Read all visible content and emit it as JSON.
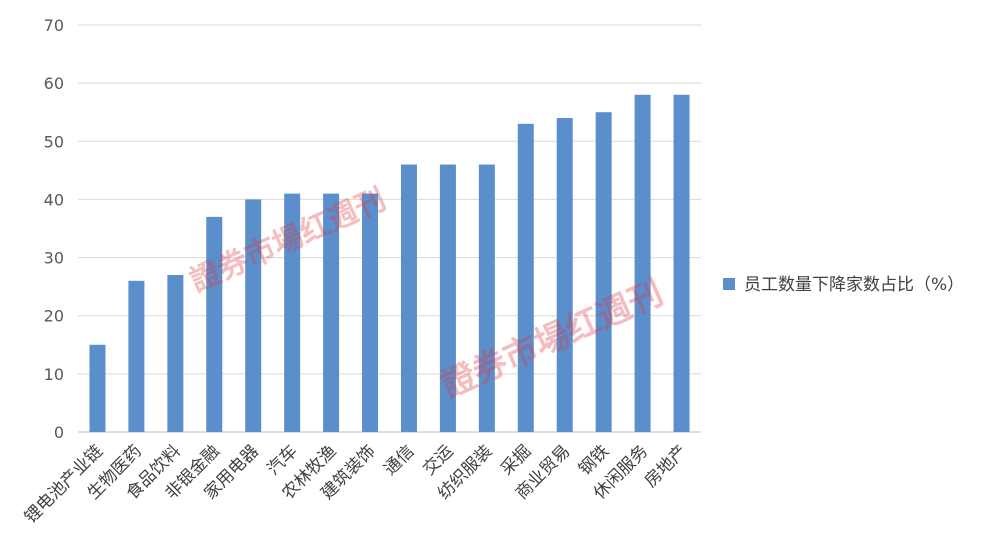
{
  "chart_data": {
    "type": "bar",
    "title": "",
    "xlabel": "",
    "ylabel": "",
    "ylim": [
      0,
      70
    ],
    "yticks": [
      0,
      10,
      20,
      30,
      40,
      50,
      60,
      70
    ],
    "grid": true,
    "legend_position": "right",
    "categories": [
      "锂电池产业链",
      "生物医药",
      "食品饮料",
      "非银金融",
      "家用电器",
      "汽车",
      "农林牧渔",
      "建筑装饰",
      "通信",
      "交运",
      "纺织服装",
      "采掘",
      "商业贸易",
      "钢铁",
      "休闲服务",
      "房地产"
    ],
    "series": [
      {
        "name": "员工数量下降家数占比（%）",
        "values": [
          15,
          26,
          27,
          37,
          40,
          41,
          41,
          41,
          46,
          46,
          46,
          53,
          54,
          55,
          58,
          58
        ]
      }
    ],
    "colors": {
      "bar": "#5b8fcc",
      "grid": "#d9d9d9",
      "axis": "#bfbfbf"
    }
  },
  "watermark": {
    "text": "證券市場红週刊",
    "color": "#e0343c"
  }
}
